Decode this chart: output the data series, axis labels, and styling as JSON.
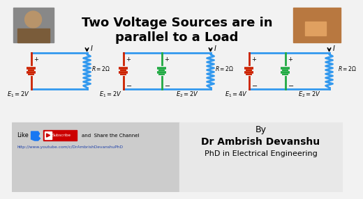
{
  "title_line1": "Two Voltage Sources are in",
  "title_line2": "parallel to a Load",
  "title_fontsize": 13,
  "bg_top": "#f2f2f2",
  "bg_bot_left": "#cccccc",
  "bg_bot_right": "#e8e8e8",
  "c_red": "#cc2200",
  "c_blue": "#3399ee",
  "c_green": "#22aa44",
  "c_black": "#111111",
  "by_text": "By",
  "author": "Dr Ambrish Devanshu",
  "degree": "PhD in Electrical Engineering",
  "like_text": "Like",
  "share_text": "and  Share the Channel",
  "url_text": "http://www.youtube.com/c/DrAmbrishDevanshuPhD",
  "subscribe_bg": "#cc0000",
  "subscribe_text": "Subscribe",
  "circ1_src": "E_{1} = 2V",
  "circ1_res": "R = 2\\Omega",
  "circ2_src1": "E_{1} = 2V",
  "circ2_src2": "E_{2} = 2V",
  "circ2_res": "R = 2\\Omega",
  "circ3_src1": "E_{1} = 4V",
  "circ3_src2": "E_{2} = 2V",
  "circ3_res": "R = 2\\Omega"
}
